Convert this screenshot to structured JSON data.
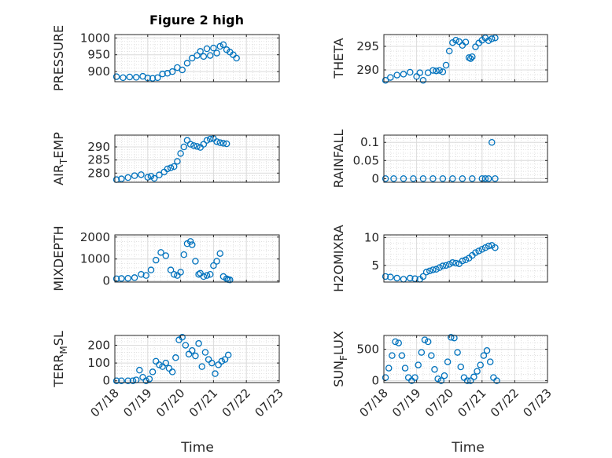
{
  "figure": {
    "title": "Figure 2 high",
    "xlabel": "Time",
    "marker_color": "#0072BD",
    "x_tick_labels": [
      "07/18",
      "07/19",
      "07/20",
      "07/21",
      "07/22",
      "07/23"
    ]
  },
  "chart_data": [
    {
      "type": "scatter",
      "ylabel": "PRESSURE",
      "ylim": [
        870,
        1010
      ],
      "yticks": [
        900,
        950,
        1000
      ],
      "xlim": [
        0,
        5
      ],
      "grid": true,
      "title": "Figure 2 high",
      "x": [
        0.05,
        0.25,
        0.45,
        0.65,
        0.85,
        1.0,
        1.15,
        1.3,
        1.45,
        1.6,
        1.75,
        1.9,
        2.05,
        2.2,
        2.35,
        2.5,
        2.6,
        2.7,
        2.8,
        2.9,
        3.0,
        3.1,
        3.2,
        3.3,
        3.4,
        3.5,
        3.6,
        3.7
      ],
      "y": [
        885,
        882,
        884,
        883,
        886,
        881,
        880,
        882,
        893,
        895,
        900,
        912,
        905,
        925,
        940,
        948,
        960,
        945,
        968,
        948,
        970,
        955,
        975,
        980,
        965,
        958,
        950,
        940
      ]
    },
    {
      "type": "scatter",
      "ylabel": "THETA",
      "ylim": [
        287.5,
        297.5
      ],
      "yticks": [
        290,
        295
      ],
      "xlim": [
        0,
        5
      ],
      "grid": true,
      "x": [
        0.05,
        0.2,
        0.4,
        0.6,
        0.8,
        1.0,
        1.1,
        1.2,
        1.35,
        1.5,
        1.6,
        1.7,
        1.8,
        1.9,
        2.0,
        2.1,
        2.2,
        2.3,
        2.4,
        2.5,
        2.6,
        2.65,
        2.7,
        2.8,
        2.9,
        3.0,
        3.1,
        3.2,
        3.3,
        3.4
      ],
      "y": [
        287.8,
        288.4,
        288.9,
        289.1,
        289.5,
        288.6,
        289.4,
        287.8,
        289.4,
        289.9,
        289.8,
        289.9,
        289.6,
        291.0,
        294.0,
        295.8,
        296.3,
        296.0,
        295.2,
        295.9,
        292.6,
        292.4,
        292.8,
        294.9,
        295.7,
        296.3,
        296.8,
        296.2,
        296.6,
        296.8
      ]
    },
    {
      "type": "scatter",
      "ylabel": "AIR_TEMP",
      "ylim": [
        276.5,
        294.5
      ],
      "yticks": [
        280,
        285,
        290
      ],
      "xlim": [
        0,
        5
      ],
      "grid": true,
      "x": [
        0.05,
        0.2,
        0.4,
        0.6,
        0.8,
        1.0,
        1.1,
        1.2,
        1.35,
        1.5,
        1.6,
        1.7,
        1.8,
        1.9,
        2.0,
        2.1,
        2.2,
        2.3,
        2.4,
        2.5,
        2.6,
        2.7,
        2.8,
        2.9,
        3.0,
        3.1,
        3.2,
        3.3,
        3.4
      ],
      "y": [
        277.5,
        277.8,
        278.3,
        279.0,
        279.4,
        278.4,
        278.8,
        278.0,
        279.3,
        280.4,
        281.6,
        282.0,
        282.5,
        284.5,
        287.5,
        290.0,
        292.5,
        291.0,
        290.5,
        290.2,
        289.8,
        291.0,
        292.5,
        293.0,
        293.2,
        292.0,
        291.6,
        291.4,
        291.2
      ]
    },
    {
      "type": "scatter",
      "ylabel": "RAINFALL",
      "ylim": [
        -0.01,
        0.12
      ],
      "yticks": [
        0,
        0.05,
        0.1
      ],
      "ytick_labels": [
        "0",
        "0.05",
        "0.1"
      ],
      "xlim": [
        0,
        5
      ],
      "grid": true,
      "x": [
        0.05,
        0.3,
        0.6,
        0.9,
        1.2,
        1.5,
        1.8,
        2.1,
        2.4,
        2.7,
        3.0,
        3.2,
        3.3,
        3.4,
        3.1
      ],
      "y": [
        0,
        0,
        0,
        0,
        0,
        0,
        0,
        0,
        0,
        0,
        0,
        0,
        0.1,
        0,
        0
      ]
    },
    {
      "type": "scatter",
      "ylabel": "MIXDEPTH",
      "ylim": [
        -50,
        2100
      ],
      "yticks": [
        0,
        1000,
        2000
      ],
      "xlim": [
        0,
        5
      ],
      "grid": true,
      "x": [
        0.05,
        0.2,
        0.4,
        0.6,
        0.8,
        0.95,
        1.1,
        1.25,
        1.4,
        1.55,
        1.7,
        1.8,
        1.9,
        2.0,
        2.1,
        2.2,
        2.3,
        2.35,
        2.45,
        2.55,
        2.6,
        2.7,
        2.8,
        2.9,
        3.0,
        3.1,
        3.2,
        3.3,
        3.4,
        3.45,
        3.5
      ],
      "y": [
        100,
        110,
        120,
        150,
        300,
        250,
        500,
        950,
        1300,
        1150,
        500,
        300,
        250,
        400,
        1200,
        1700,
        1800,
        1650,
        900,
        300,
        350,
        200,
        250,
        300,
        700,
        900,
        1250,
        200,
        100,
        60,
        50
      ]
    },
    {
      "type": "scatter",
      "ylabel": "H2OMIXRA",
      "ylim": [
        2,
        10.5
      ],
      "yticks": [
        5,
        10
      ],
      "xlim": [
        0,
        5
      ],
      "grid": true,
      "x": [
        0.05,
        0.2,
        0.4,
        0.6,
        0.8,
        0.95,
        1.1,
        1.2,
        1.3,
        1.4,
        1.5,
        1.6,
        1.7,
        1.8,
        1.9,
        2.0,
        2.1,
        2.2,
        2.3,
        2.4,
        2.5,
        2.6,
        2.7,
        2.8,
        2.9,
        3.0,
        3.1,
        3.2,
        3.3,
        3.4
      ],
      "y": [
        3.0,
        2.9,
        2.7,
        2.5,
        2.7,
        2.6,
        2.5,
        3.0,
        3.8,
        4.0,
        4.2,
        4.3,
        4.6,
        4.9,
        5.0,
        5.2,
        5.5,
        5.4,
        5.3,
        5.8,
        6.0,
        6.3,
        6.8,
        7.3,
        7.6,
        7.9,
        8.2,
        8.5,
        8.6,
        8.2
      ]
    },
    {
      "type": "scatter",
      "ylabel": "TERR_MSL",
      "ylim": [
        -10,
        255
      ],
      "yticks": [
        0,
        100,
        200
      ],
      "xlim": [
        0,
        5
      ],
      "grid": true,
      "x": [
        0.05,
        0.2,
        0.4,
        0.55,
        0.65,
        0.75,
        0.85,
        0.95,
        1.05,
        1.15,
        1.25,
        1.35,
        1.45,
        1.55,
        1.65,
        1.75,
        1.85,
        1.95,
        2.05,
        2.15,
        2.25,
        2.35,
        2.45,
        2.55,
        2.65,
        2.75,
        2.85,
        2.95,
        3.05,
        3.15,
        3.25,
        3.35,
        3.45
      ],
      "y": [
        0,
        0,
        0,
        0,
        5,
        60,
        20,
        0,
        10,
        50,
        110,
        90,
        80,
        100,
        70,
        50,
        130,
        230,
        245,
        200,
        150,
        170,
        140,
        210,
        80,
        160,
        120,
        100,
        40,
        90,
        110,
        120,
        145
      ]
    },
    {
      "type": "scatter",
      "ylabel": "SUN_FLUX",
      "ylim": [
        -30,
        720
      ],
      "yticks": [
        0,
        500
      ],
      "xlim": [
        0,
        5
      ],
      "grid": true,
      "x": [
        0.05,
        0.15,
        0.25,
        0.35,
        0.45,
        0.55,
        0.65,
        0.75,
        0.85,
        0.95,
        1.05,
        1.15,
        1.25,
        1.35,
        1.45,
        1.55,
        1.65,
        1.75,
        1.85,
        1.95,
        2.05,
        2.15,
        2.25,
        2.35,
        2.45,
        2.55,
        2.65,
        2.75,
        2.85,
        2.95,
        3.05,
        3.15,
        3.25,
        3.35,
        3.45
      ],
      "y": [
        50,
        200,
        400,
        620,
        600,
        400,
        200,
        50,
        0,
        50,
        250,
        450,
        650,
        620,
        400,
        180,
        30,
        0,
        80,
        300,
        690,
        680,
        450,
        220,
        50,
        0,
        0,
        60,
        150,
        250,
        400,
        480,
        300,
        50,
        0
      ]
    }
  ]
}
